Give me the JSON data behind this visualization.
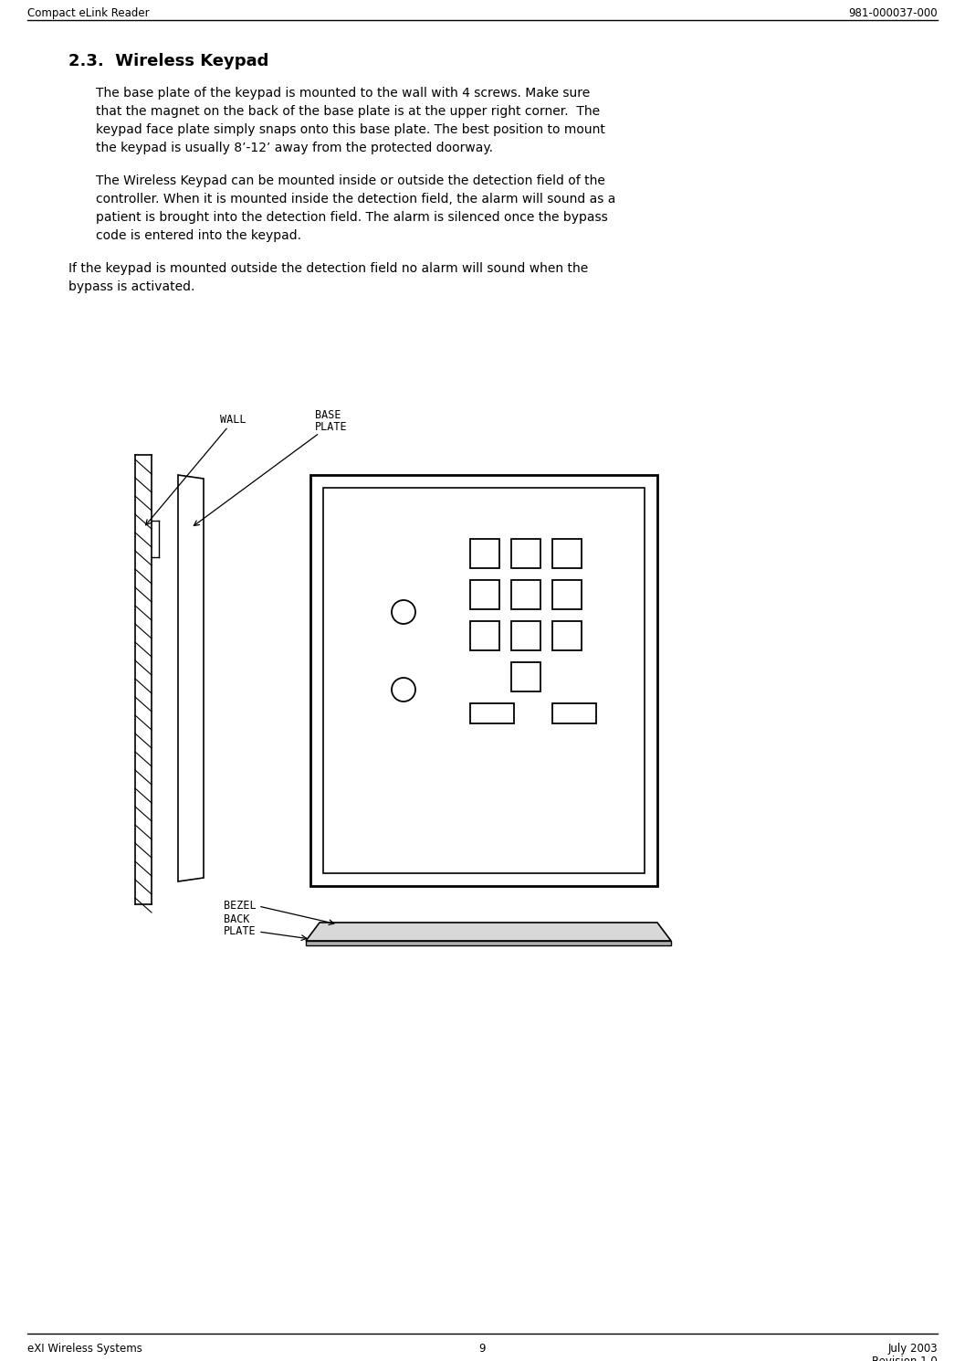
{
  "header_left": "Compact eLink Reader",
  "header_right": "981-000037-000",
  "footer_left": "eXI Wireless Systems",
  "footer_center": "9",
  "footer_right_line1": "July 2003",
  "footer_right_line2": "Revision 1.0",
  "section_title": "2.3.  Wireless Keypad",
  "para1_lines": [
    "The base plate of the keypad is mounted to the wall with 4 screws. Make sure",
    "that the magnet on the back of the base plate is at the upper right corner.  The",
    "keypad face plate simply snaps onto this base plate. The best position to mount",
    "the keypad is usually 8’-12’ away from the protected doorway."
  ],
  "para2_lines": [
    "The Wireless Keypad can be mounted inside or outside the detection field of the",
    "controller. When it is mounted inside the detection field, the alarm will sound as a",
    "patient is brought into the detection field. The alarm is silenced once the bypass",
    "code is entered into the keypad."
  ],
  "para3_lines": [
    "If the keypad is mounted outside the detection field no alarm will sound when the",
    "bypass is activated."
  ],
  "label_wall": "WALL",
  "label_baseplate_line1": "BASE",
  "label_baseplate_line2": "PLATE",
  "label_bezel": "BEZEL",
  "label_backplate_line1": "BACK",
  "label_backplate_line2": "PLATE",
  "bg_color": "#ffffff",
  "text_color": "#000000"
}
